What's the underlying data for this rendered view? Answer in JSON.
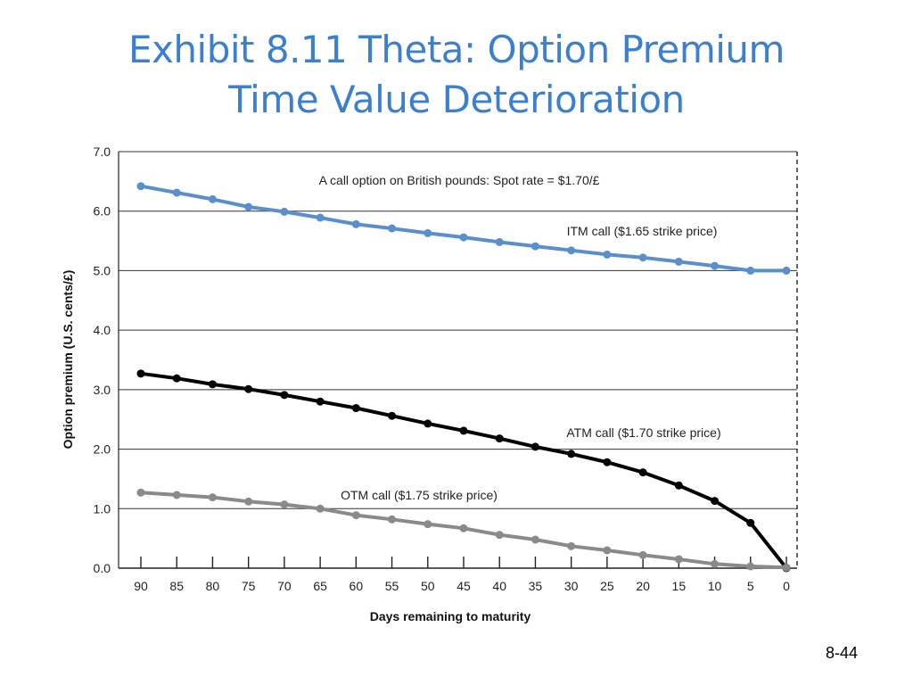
{
  "slide": {
    "title_line1": "Exhibit 8.11  Theta: Option Premium",
    "title_line2": "Time Value Deterioration",
    "page_number": "8-44"
  },
  "chart_data": {
    "type": "line",
    "title": "A call option on British pounds: Spot rate = $1.70/£",
    "xlabel": "Days remaining to maturity",
    "ylabel": "Option premium (U.S. cents/£)",
    "x": [
      90,
      85,
      80,
      75,
      70,
      65,
      60,
      55,
      50,
      45,
      40,
      35,
      30,
      25,
      20,
      15,
      10,
      5,
      0
    ],
    "x_tick_labels": [
      "90",
      "85",
      "80",
      "75",
      "70",
      "65",
      "60",
      "55",
      "50",
      "45",
      "40",
      "35",
      "30",
      "25",
      "20",
      "15",
      "10",
      "5",
      "0"
    ],
    "y_tick_labels": [
      "0.0",
      "1.0",
      "2.0",
      "3.0",
      "4.0",
      "5.0",
      "6.0",
      "7.0"
    ],
    "ylim": [
      0,
      7
    ],
    "xlim": [
      90,
      0
    ],
    "x_reversed": true,
    "grid": "horizontal",
    "series": [
      {
        "name": "ITM call ($1.65 strike price)",
        "color": "#5b8fcb",
        "values": [
          6.42,
          6.31,
          6.2,
          6.07,
          5.99,
          5.89,
          5.78,
          5.71,
          5.63,
          5.56,
          5.48,
          5.41,
          5.34,
          5.27,
          5.22,
          5.15,
          5.08,
          5.0,
          5.0
        ]
      },
      {
        "name": "ATM call ($1.70 strike price)",
        "color": "#000000",
        "values": [
          3.27,
          3.19,
          3.09,
          3.01,
          2.91,
          2.8,
          2.69,
          2.56,
          2.43,
          2.31,
          2.18,
          2.04,
          1.92,
          1.78,
          1.61,
          1.39,
          1.13,
          0.76,
          0.0
        ]
      },
      {
        "name": "OTM call ($1.75 strike price)",
        "color": "#8a8a8c",
        "values": [
          1.27,
          1.23,
          1.19,
          1.12,
          1.07,
          1.0,
          0.89,
          0.82,
          0.74,
          0.67,
          0.56,
          0.48,
          0.37,
          0.3,
          0.22,
          0.15,
          0.07,
          0.03,
          0.01
        ]
      }
    ]
  }
}
